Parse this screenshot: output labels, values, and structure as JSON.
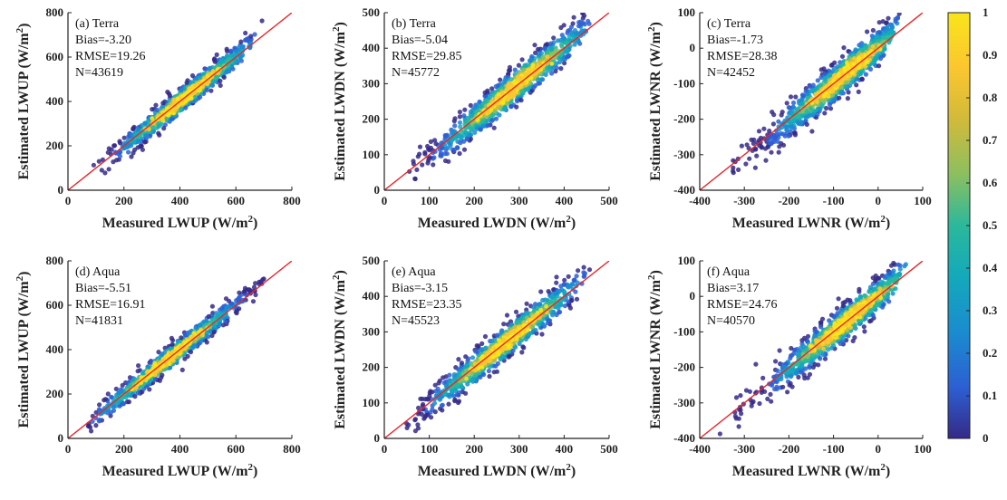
{
  "chart_data": [
    {
      "type": "scatter",
      "label": "(a) Terra",
      "stats": [
        "Bias=-3.20",
        "RMSE=19.26",
        "N=43619"
      ],
      "xlabel": "Measured LWUP (W/m",
      "ylabel": "Estimated LWUP (W/m",
      "xlim": [
        0,
        800
      ],
      "ylim": [
        0,
        800
      ],
      "xticks": [
        0,
        200,
        400,
        600,
        800
      ],
      "yticks": [
        0,
        200,
        400,
        600,
        800
      ],
      "cloud": {
        "x": [
          80,
          660
        ],
        "spread": 42,
        "center": 420,
        "range": [
          80,
          680
        ]
      }
    },
    {
      "type": "scatter",
      "label": "(b) Terra",
      "stats": [
        "Bias=-5.04",
        "RMSE=29.85",
        "N=45772"
      ],
      "xlabel": "Measured LWDN (W/m",
      "ylabel": "Estimated LWDN (W/m",
      "xlim": [
        0,
        500
      ],
      "ylim": [
        0,
        500
      ],
      "xticks": [
        0,
        100,
        200,
        300,
        400,
        500
      ],
      "yticks": [
        0,
        100,
        200,
        300,
        400,
        500
      ],
      "cloud": {
        "x": [
          50,
          450
        ],
        "spread": 38,
        "center": 290,
        "range": [
          50,
          460
        ]
      }
    },
    {
      "type": "scatter",
      "label": "(c) Terra",
      "stats": [
        "Bias=-1.73",
        "RMSE=28.38",
        "N=42452"
      ],
      "xlabel": "Measured LWNR (W/m",
      "ylabel": "Estimated LWNR (W/m",
      "xlim": [
        -400,
        100
      ],
      "ylim": [
        -400,
        100
      ],
      "xticks": [
        -400,
        -300,
        -200,
        -100,
        0,
        100
      ],
      "yticks": [
        -400,
        -300,
        -200,
        -100,
        0,
        100
      ],
      "cloud": {
        "x": [
          -330,
          30
        ],
        "spread": 40,
        "center": -80,
        "range": [
          -340,
          40
        ]
      }
    },
    {
      "type": "scatter",
      "label": "(d) Aqua",
      "stats": [
        "Bias=-5.51",
        "RMSE=16.91",
        "N=41831"
      ],
      "xlabel": "Measured LWUP (W/m",
      "ylabel": "Estimated LWUP (W/m",
      "xlim": [
        0,
        800
      ],
      "ylim": [
        0,
        800
      ],
      "xticks": [
        0,
        200,
        400,
        600,
        800
      ],
      "yticks": [
        0,
        200,
        400,
        600,
        800
      ],
      "cloud": {
        "x": [
          80,
          690
        ],
        "spread": 38,
        "center": 360,
        "range": [
          80,
          700
        ]
      }
    },
    {
      "type": "scatter",
      "label": "(e) Aqua",
      "stats": [
        "Bias=-3.15",
        "RMSE=23.35",
        "N=45523"
      ],
      "xlabel": "Measured LWDN (W/m",
      "ylabel": "Estimated LWDN (W/m",
      "xlim": [
        0,
        500
      ],
      "ylim": [
        0,
        500
      ],
      "xticks": [
        0,
        100,
        200,
        300,
        400,
        500
      ],
      "yticks": [
        0,
        100,
        200,
        300,
        400,
        500
      ],
      "cloud": {
        "x": [
          50,
          450
        ],
        "spread": 35,
        "center": 270,
        "range": [
          50,
          460
        ]
      }
    },
    {
      "type": "scatter",
      "label": "(f) Aqua",
      "stats": [
        "Bias=3.17",
        "RMSE=24.76",
        "N=40570"
      ],
      "xlabel": "Measured LWNR (W/m",
      "ylabel": "Estimated LWNR (W/m",
      "xlim": [
        -400,
        100
      ],
      "ylim": [
        -400,
        100
      ],
      "xticks": [
        -400,
        -300,
        -200,
        -100,
        0,
        100
      ],
      "yticks": [
        -400,
        -300,
        -200,
        -100,
        0,
        100
      ],
      "cloud": {
        "x": [
          -340,
          50
        ],
        "spread": 38,
        "center": -70,
        "range": [
          -345,
          60
        ]
      }
    }
  ],
  "colorbar": {
    "ticks": [
      "0",
      "0.1",
      "0.2",
      "0.3",
      "0.4",
      "0.5",
      "0.6",
      "0.7",
      "0.8",
      "0.9",
      "1"
    ],
    "colors": [
      "#352a87",
      "#2d5fd3",
      "#1a8ccf",
      "#14a9bb",
      "#2bb89b",
      "#8cbf60",
      "#d2ba3a",
      "#fbc630",
      "#f9e41b"
    ]
  },
  "colors": {
    "identity_line": "#e8262a",
    "axis": "#222222"
  }
}
